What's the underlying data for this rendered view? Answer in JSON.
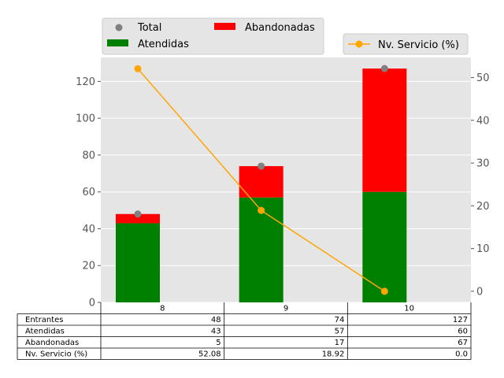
{
  "chart_data": {
    "type": "bar",
    "categories": [
      "8",
      "9",
      "10"
    ],
    "series": [
      {
        "name": "Atendidas",
        "kind": "stacked-bar",
        "axis": "left",
        "color": "#008000",
        "values": [
          43,
          57,
          60
        ]
      },
      {
        "name": "Abandonadas",
        "kind": "stacked-bar",
        "axis": "left",
        "color": "#ff0000",
        "values": [
          5,
          17,
          67
        ]
      },
      {
        "name": "Total",
        "kind": "scatter",
        "axis": "left",
        "color": "#808080",
        "values": [
          48,
          74,
          127
        ]
      },
      {
        "name": "Nv. Servicio (%)",
        "kind": "line",
        "axis": "right",
        "color": "#ffa500",
        "values": [
          52.08,
          18.92,
          0.0
        ]
      }
    ],
    "left_axis": {
      "ticks": [
        "0",
        "20",
        "40",
        "60",
        "80",
        "100",
        "120"
      ],
      "ylim": [
        0,
        133
      ]
    },
    "right_axis": {
      "ticks": [
        "0",
        "10",
        "20",
        "30",
        "40",
        "50"
      ],
      "ylim": [
        -2.6,
        54.7
      ]
    },
    "grid": true,
    "background": "#e5e5e5",
    "legends": {
      "left": {
        "placement": "above-top-left",
        "entries": [
          "Total",
          "Atendidas",
          "Abandonadas"
        ]
      },
      "right": {
        "placement": "top-right",
        "entries": [
          "Nv. Servicio (%)"
        ]
      }
    },
    "table": {
      "row_labels": [
        "Entrantes",
        "Atendidas",
        "Abandonadas",
        "Nv. Servicio (%)"
      ],
      "rows": [
        [
          "48",
          "74",
          "127"
        ],
        [
          "43",
          "57",
          "60"
        ],
        [
          "5",
          "17",
          "67"
        ],
        [
          "52.08",
          "18.92",
          "0.0"
        ]
      ]
    }
  }
}
